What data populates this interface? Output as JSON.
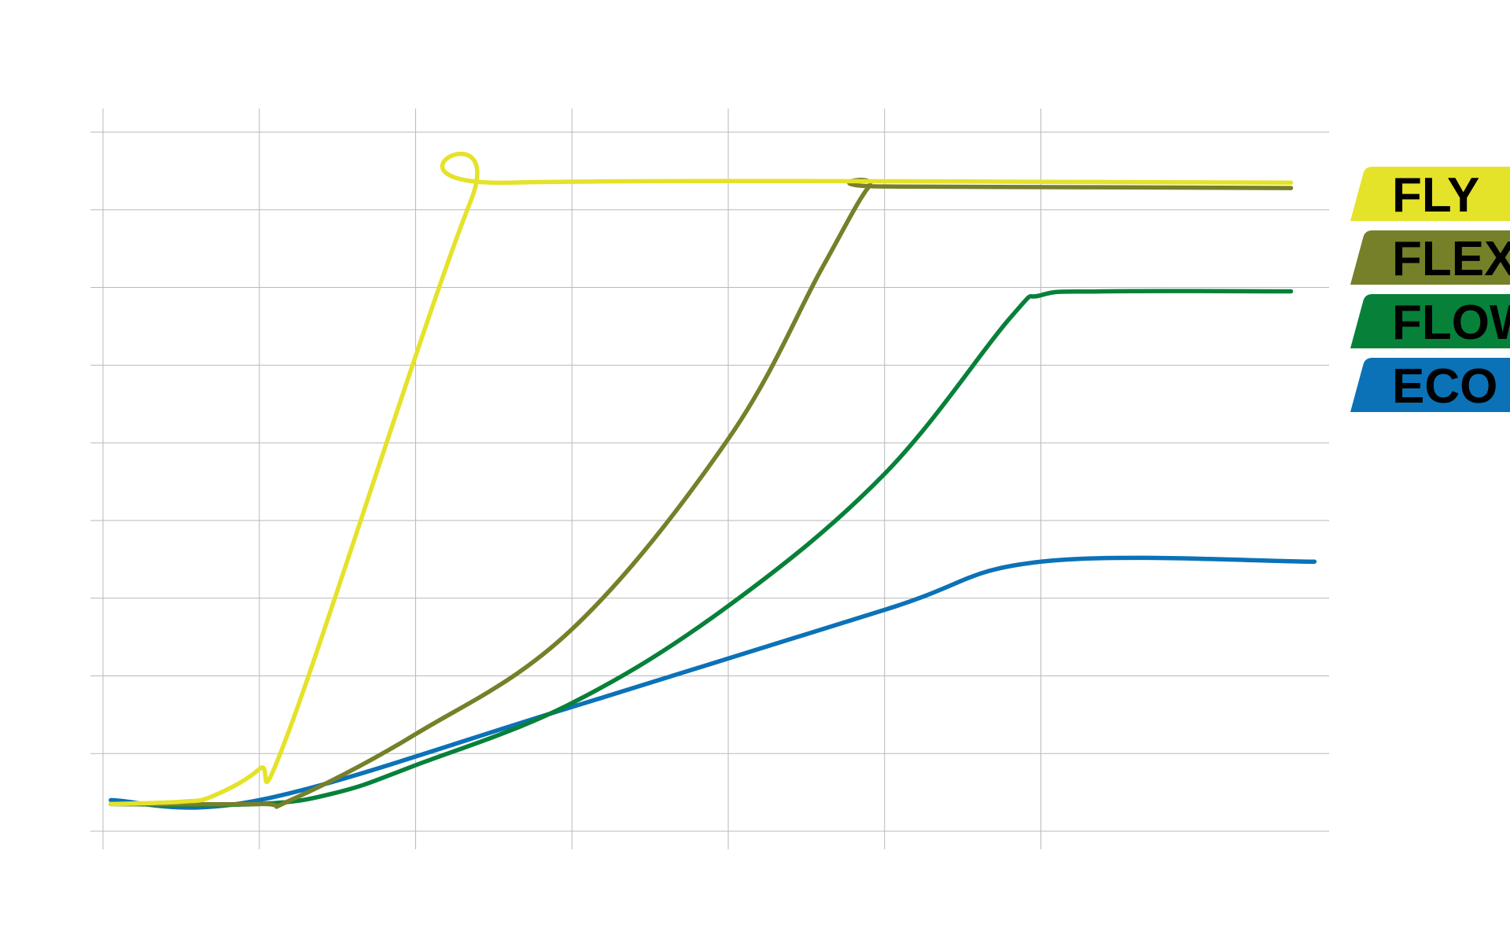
{
  "chart_data": {
    "type": "line",
    "title": "",
    "xlabel": "",
    "ylabel": "",
    "xlim": [
      0,
      8
    ],
    "ylim": [
      0,
      9
    ],
    "grid": true,
    "x_gridlines": [
      0,
      1,
      2,
      3,
      4,
      5,
      6
    ],
    "y_gridlines": [
      0,
      1,
      2,
      3,
      4,
      5,
      6,
      7,
      8,
      9
    ],
    "legend_position": "right",
    "series": [
      {
        "name": "FLY",
        "color": "#e5e22a",
        "x": [
          0.05,
          0.5,
          0.7,
          1.0,
          1.2,
          2.35,
          2.6,
          7.6
        ],
        "y": [
          0.35,
          0.38,
          0.45,
          0.8,
          1.35,
          8.1,
          8.35,
          8.35
        ]
      },
      {
        "name": "FLEX",
        "color": "#768029",
        "x": [
          0.05,
          1.0,
          1.2,
          2.0,
          3.0,
          4.0,
          4.6,
          4.9,
          5.0,
          7.6
        ],
        "y": [
          0.35,
          0.35,
          0.4,
          1.25,
          2.6,
          5.05,
          7.25,
          8.3,
          8.3,
          8.28
        ]
      },
      {
        "name": "FLOW",
        "color": "#078139",
        "x": [
          0.05,
          1.0,
          1.5,
          2.0,
          3.0,
          4.0,
          5.0,
          5.8,
          6.0,
          6.4,
          7.6
        ],
        "y": [
          0.35,
          0.35,
          0.5,
          0.85,
          1.65,
          2.9,
          4.6,
          6.6,
          6.9,
          6.95,
          6.95
        ]
      },
      {
        "name": "ECO",
        "color": "#0b72b7",
        "x": [
          0.05,
          1.0,
          3.0,
          5.0,
          6.0,
          7.75
        ],
        "y": [
          0.4,
          0.4,
          1.6,
          2.85,
          3.47,
          3.47
        ]
      }
    ]
  }
}
